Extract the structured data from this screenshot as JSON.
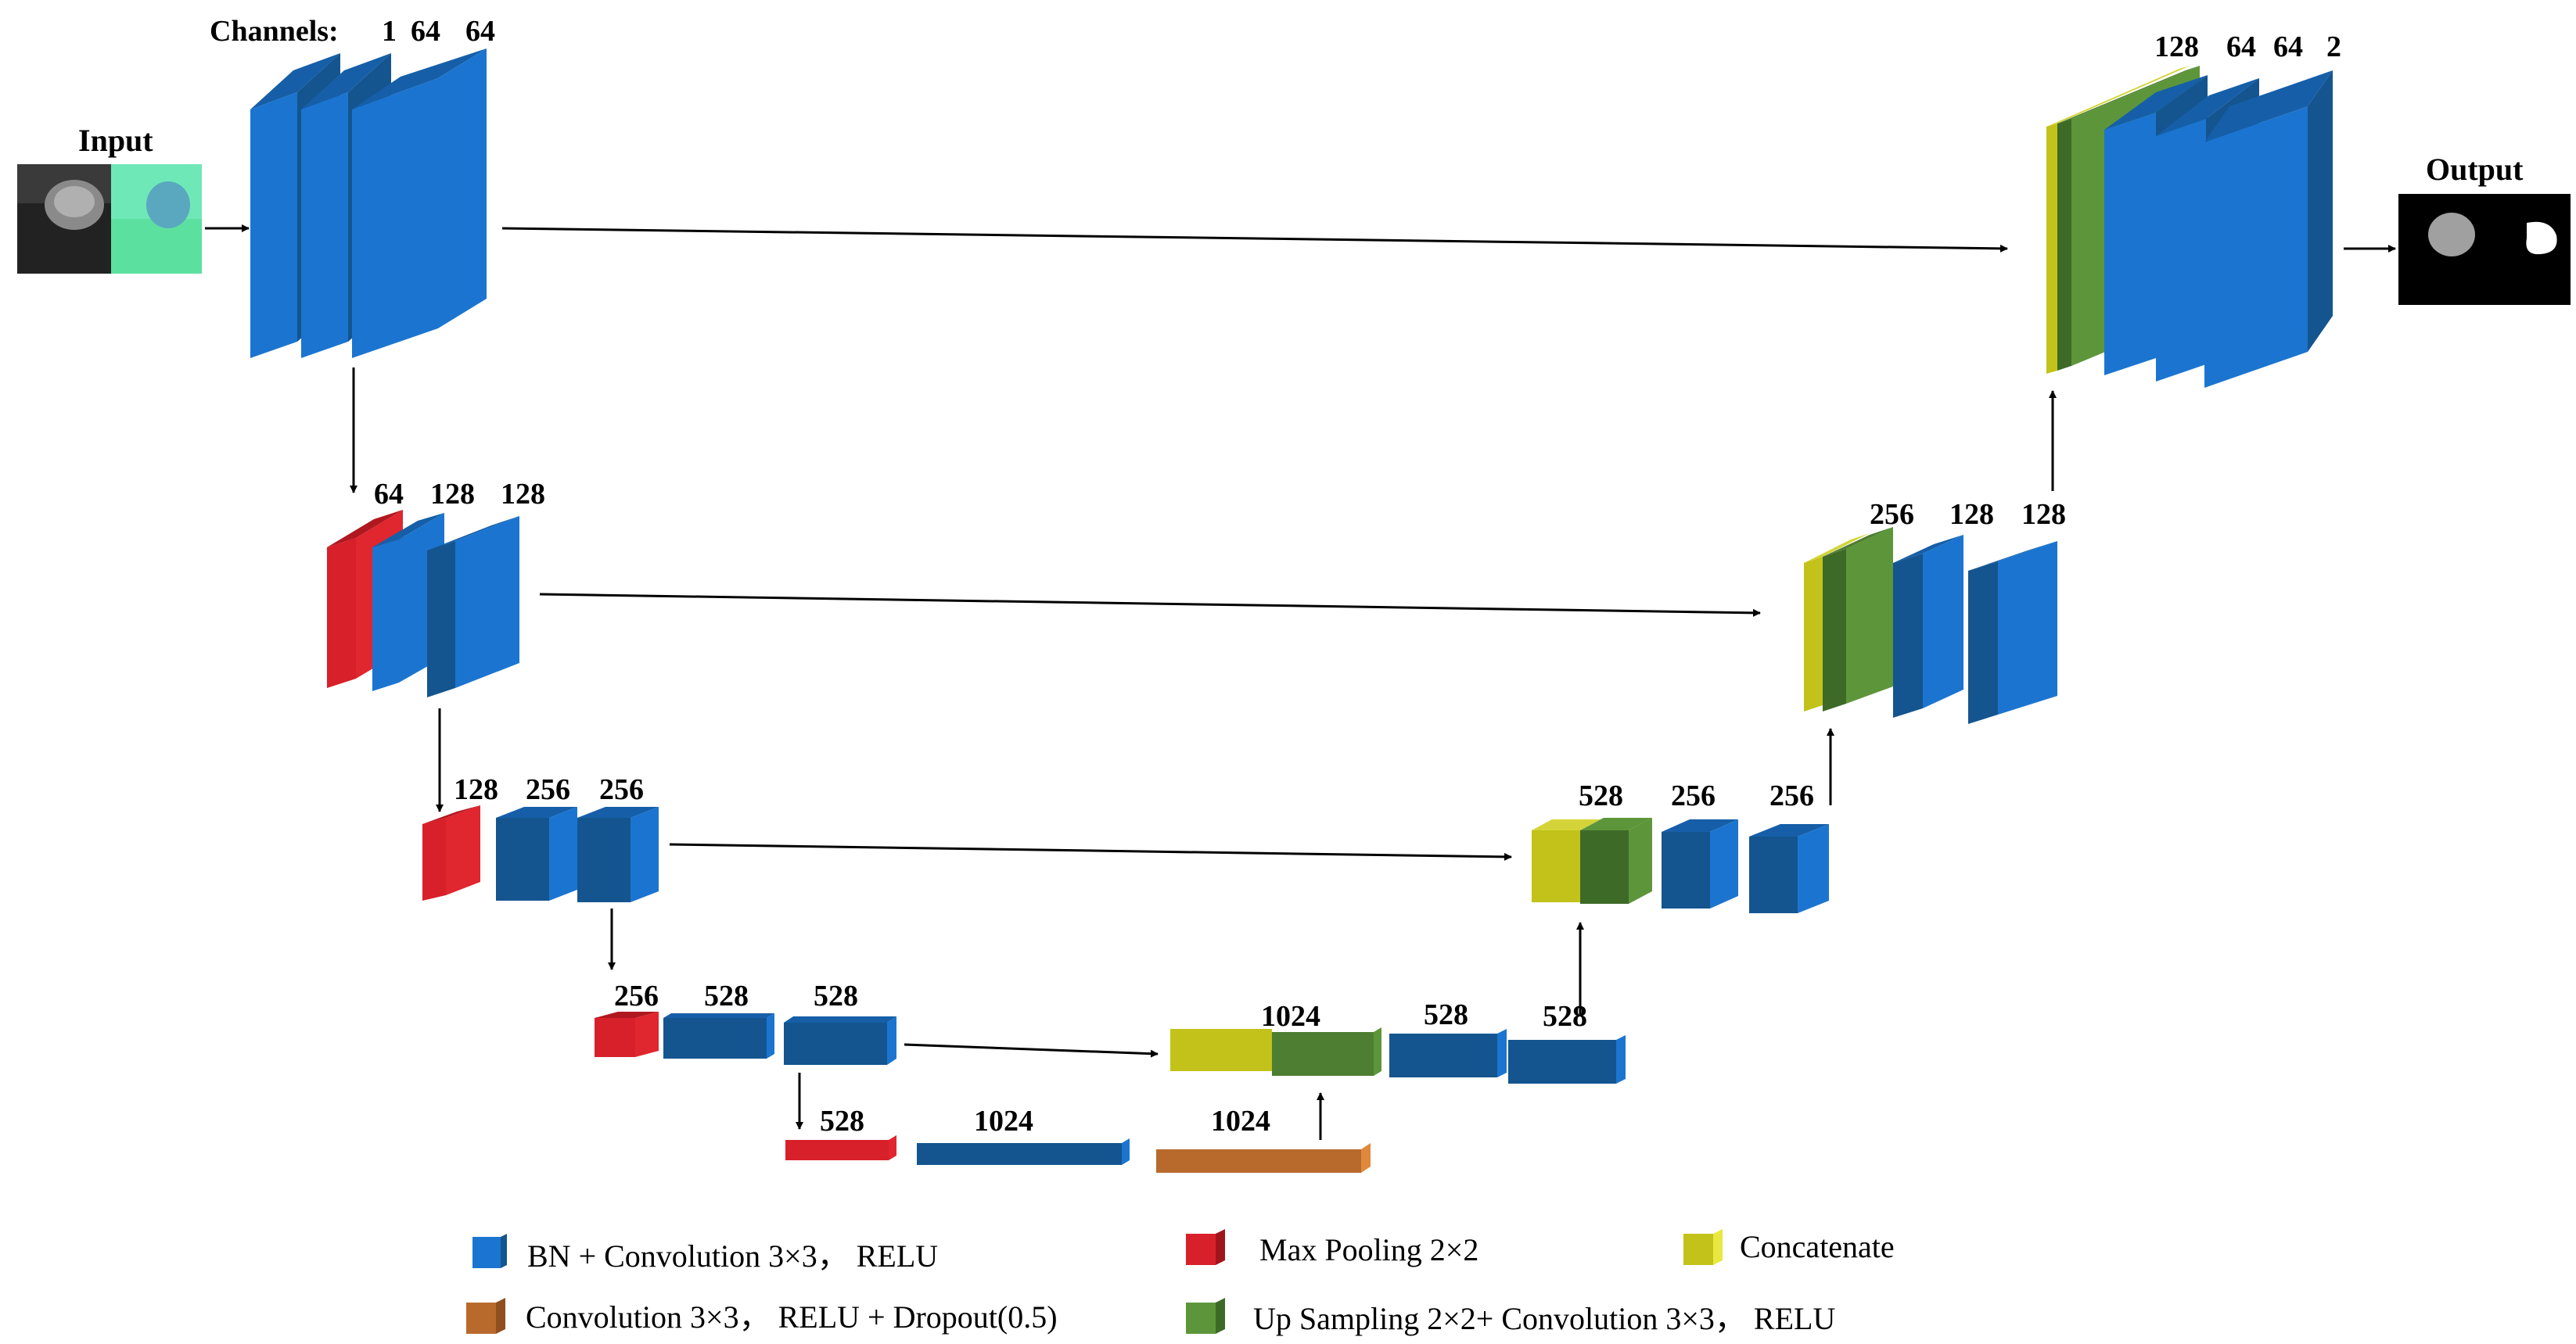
{
  "labels": {
    "input": "Input",
    "output": "Output",
    "channels": "Channels:"
  },
  "colors": {
    "conv_blue": "#1b75d0",
    "maxpool_red": "#d8202a",
    "concat_yellow": "#c2c21a",
    "upsample_green": "#5d963a",
    "dropout_orange": "#b86a2d",
    "arrow": "#000000"
  },
  "stages": {
    "s1": {
      "c1": "1",
      "c2": "64",
      "c3": "64"
    },
    "s2": {
      "c1": "64",
      "c2": "128",
      "c3": "128"
    },
    "s3": {
      "c1": "128",
      "c2": "256",
      "c3": "256"
    },
    "s4": {
      "c1": "256",
      "c2": "528",
      "c3": "528"
    },
    "s5": {
      "c1": "528",
      "c2": "1024",
      "c3": "1024"
    },
    "d4": {
      "c1": "1024",
      "c2": "528",
      "c3": "528"
    },
    "d3": {
      "c1": "528",
      "c2": "256",
      "c3": "256"
    },
    "d2": {
      "c1": "256",
      "c2": "128",
      "c3": "128"
    },
    "d1": {
      "c1": "128",
      "c2": "64",
      "c3": "64",
      "c4": "2"
    }
  },
  "legend": {
    "conv": "BN + Convolution 3×3， RELU",
    "maxpool": "Max Pooling 2×2",
    "concat": "Concatenate",
    "dropout": "Convolution 3×3， RELU + Dropout(0.5)",
    "upsample": "Up Sampling 2×2+ Convolution 3×3， RELU"
  }
}
